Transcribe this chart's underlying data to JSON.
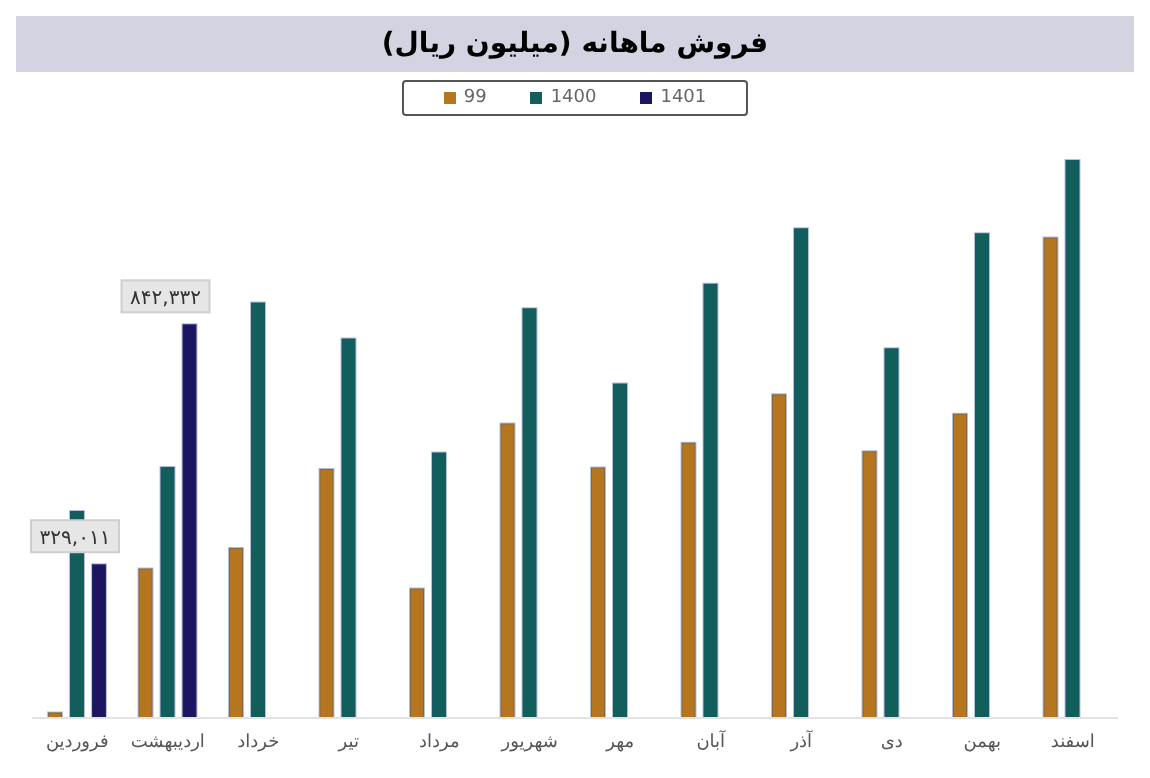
{
  "chart_data": {
    "type": "bar",
    "title": "فروش ماهانه (میلیون ریال)",
    "legend": "top",
    "categories": [
      "فروردین",
      "اردیبهشت",
      "خرداد",
      "تیر",
      "مرداد",
      "شهریور",
      "مهر",
      "آبان",
      "آذر",
      "دی",
      "بهمن",
      "اسفند"
    ],
    "series": [
      {
        "name": "99",
        "color": "#b5761f",
        "values": [
          12000,
          320000,
          364000,
          533000,
          277000,
          630000,
          536000,
          589000,
          693000,
          571000,
          651000,
          1028000
        ]
      },
      {
        "name": "1400",
        "color": "#125e5a",
        "values": [
          443000,
          537000,
          889000,
          812000,
          568000,
          877000,
          716000,
          929000,
          1048000,
          791000,
          1037000,
          1194000
        ]
      },
      {
        "name": "1401",
        "color": "#1c1660",
        "values": [
          329011,
          842332,
          null,
          null,
          null,
          null,
          null,
          null,
          null,
          null,
          null,
          null
        ],
        "value_labels": [
          "۳۲۹,۰۱۱",
          "۸۴۲,۳۳۲",
          null,
          null,
          null,
          null,
          null,
          null,
          null,
          null,
          null,
          null
        ]
      }
    ]
  }
}
